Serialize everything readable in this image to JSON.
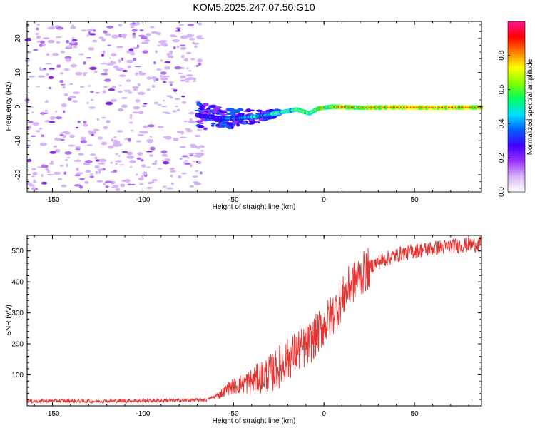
{
  "figure": {
    "title": "KOM5.2025.247.07.50.G10"
  },
  "chart_data": [
    {
      "type": "heatmap",
      "name": "spectrogram",
      "xlabel": "Height of straight line (km)",
      "ylabel": "Frequency (Hz)",
      "xlim": [
        -164,
        87
      ],
      "ylim": [
        -25,
        25
      ],
      "x_ticks": [
        -150,
        -100,
        -50,
        0,
        50
      ],
      "x_tick_labels": [
        "-150",
        "-100",
        "-50",
        "0",
        "50"
      ],
      "y_ticks": [
        -20,
        -10,
        0,
        10,
        20
      ],
      "y_tick_labels": [
        "-20",
        "-10",
        "0",
        "10",
        "20"
      ],
      "colorbar": {
        "label": "Normalized spectral amplitude",
        "range": [
          0,
          1
        ],
        "ticks": [
          0.0,
          0.2,
          0.4,
          0.6,
          0.8
        ],
        "tick_labels": [
          "0.0",
          "0.2",
          "0.4",
          "0.6",
          "0.8"
        ],
        "colors": [
          "#ffffff",
          "#d8b4f8",
          "#9b30ff",
          "#4000ff",
          "#0060ff",
          "#00e0ff",
          "#00ff60",
          "#80ff00",
          "#ffff00",
          "#ff8000",
          "#ff0000",
          "#ff1493"
        ]
      },
      "signal_track": [
        {
          "x": -70,
          "f": -2.5
        },
        {
          "x": -60,
          "f": -3.2
        },
        {
          "x": -50,
          "f": -3.5
        },
        {
          "x": -40,
          "f": -3.0
        },
        {
          "x": -30,
          "f": -2.3
        },
        {
          "x": -22,
          "f": -1.5
        },
        {
          "x": -15,
          "f": -0.8
        },
        {
          "x": -8,
          "f": -2.0
        },
        {
          "x": -3,
          "f": -0.5
        },
        {
          "x": 5,
          "f": 0.0
        },
        {
          "x": 20,
          "f": -0.3
        },
        {
          "x": 40,
          "f": -0.2
        },
        {
          "x": 60,
          "f": -0.3
        },
        {
          "x": 87,
          "f": -0.2
        }
      ],
      "noise_region": {
        "x_from": -164,
        "x_to": -67
      }
    },
    {
      "type": "line",
      "name": "snr",
      "xlabel": "Height of straight line (km)",
      "ylabel": "SNR (v/v)",
      "xlim": [
        -164,
        87
      ],
      "ylim": [
        0,
        550
      ],
      "x_ticks": [
        -150,
        -100,
        -50,
        0,
        50
      ],
      "x_tick_labels": [
        "-150",
        "-100",
        "-50",
        "0",
        "50"
      ],
      "y_ticks": [
        100,
        200,
        300,
        400,
        500
      ],
      "y_tick_labels": [
        "100",
        "200",
        "300",
        "400",
        "500"
      ],
      "line_color": "#e8322f",
      "series": [
        {
          "name": "SNR",
          "x": [
            -164,
            -150,
            -130,
            -110,
            -90,
            -75,
            -65,
            -58,
            -52,
            -46,
            -40,
            -34,
            -28,
            -22,
            -18,
            -14,
            -10,
            -6,
            -2,
            2,
            6,
            10,
            14,
            18,
            22,
            26,
            30,
            36,
            42,
            50,
            60,
            70,
            80,
            87
          ],
          "y": [
            15,
            16,
            15,
            16,
            17,
            18,
            20,
            35,
            60,
            70,
            80,
            95,
            110,
            140,
            160,
            180,
            190,
            215,
            245,
            275,
            305,
            345,
            385,
            410,
            430,
            450,
            465,
            478,
            490,
            500,
            508,
            515,
            520,
            522
          ]
        }
      ]
    }
  ]
}
